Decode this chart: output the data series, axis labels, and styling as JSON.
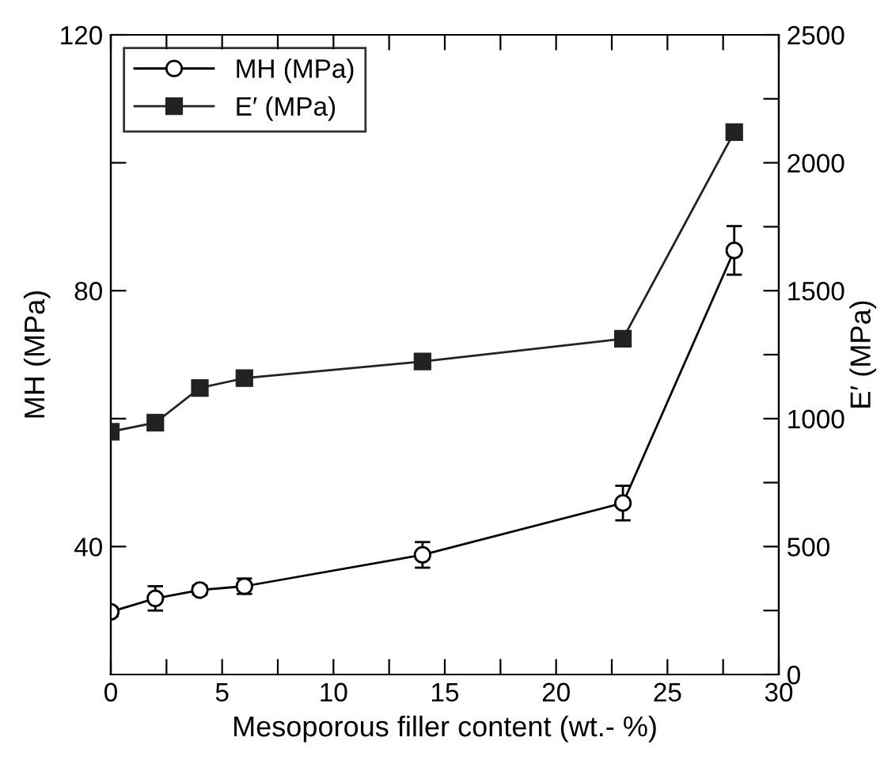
{
  "chart_data": {
    "type": "line",
    "xlabel": "Mesoporous filler content (wt.- %)",
    "ylabel": "MH (MPa)",
    "y2label": "E′ (MPa)",
    "x": [
      0,
      2,
      4,
      6,
      14,
      23,
      28
    ],
    "series": [
      {
        "name": "MH (MPa)",
        "color": "#000000",
        "marker": "circle",
        "values": [
          29.8,
          31.9,
          33.2,
          33.8,
          38.7,
          46.8,
          86.3
        ],
        "errors": [
          0.7,
          1.9,
          0.7,
          1.2,
          2,
          2.7,
          3.8
        ]
      },
      {
        "name": "E′ (MPa)",
        "color": "#222222",
        "marker": "square",
        "axis": "y2",
        "values": [
          949,
          984,
          1120,
          1158,
          1223,
          1312,
          2120
        ]
      }
    ],
    "xlim": [
      0,
      30
    ],
    "xticks": [
      0,
      {
        "value": 2.5,
        "label": null
      },
      5,
      {
        "value": 7.5,
        "label": null
      },
      10,
      {
        "value": 12.5,
        "label": null
      },
      15,
      {
        "value": 17.5,
        "label": null
      },
      20,
      {
        "value": 22.5,
        "label": null
      },
      25,
      {
        "value": 27.5,
        "label": null
      },
      30
    ],
    "ylim": [
      20,
      120
    ],
    "yticks": [
      40,
      {
        "value": 60,
        "label": null
      },
      80,
      {
        "value": 100,
        "label": null
      },
      120
    ],
    "y2lim": [
      0,
      2500
    ],
    "y2ticks": [
      0,
      {
        "value": 250,
        "label": null
      },
      500,
      {
        "value": 750,
        "label": null
      },
      1000,
      {
        "value": 1250,
        "label": null
      },
      1500,
      {
        "value": 1750,
        "label": null
      },
      2000,
      {
        "value": 2250,
        "label": null
      },
      2500
    ],
    "grid": false,
    "legend": "top left",
    "line_style": "solid"
  }
}
